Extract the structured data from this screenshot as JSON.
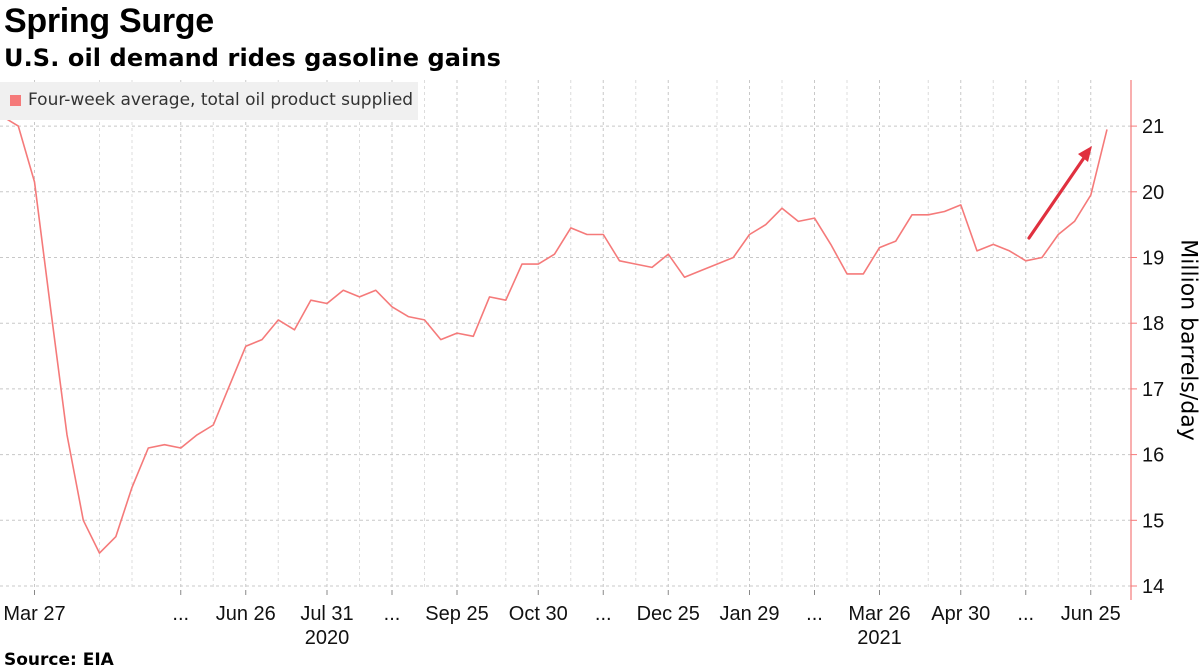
{
  "title": "Spring Surge",
  "subtitle": "U.S. oil demand rides gasoline gains",
  "source": "Source: EIA",
  "colors": {
    "line": "#f57a7a",
    "arrow": "#e0303f",
    "axis": "#f57a7a",
    "grid": "#c8c8c8"
  },
  "chart_data": {
    "type": "line",
    "title": "Spring Surge",
    "subtitle": "U.S. oil demand rides gasoline gains",
    "ylabel": "Million barrels/day",
    "ylim": [
      14,
      21.8
    ],
    "yticks": [
      14,
      15,
      16,
      17,
      18,
      19,
      20,
      21
    ],
    "y_axis_side": "right",
    "grid": true,
    "legend": {
      "placement": "top-left",
      "entries": [
        "Four-week average, total oil product supplied"
      ]
    },
    "x_tick_labels": [
      "Mar 27",
      "...",
      "Jun 26",
      "Jul 31",
      "...",
      "Sep 25",
      "Oct 30",
      "...",
      "Dec 25",
      "Jan 29",
      "...",
      "Mar 26",
      "Apr 30",
      "...",
      "Jun 25"
    ],
    "x_year_labels": [
      "2020",
      "2021"
    ],
    "annotations": [
      "upward arrow near recent data"
    ],
    "series": [
      {
        "name": "Four-week average, total oil product supplied",
        "x": [
          "2020-03-13",
          "2020-03-20",
          "2020-03-27",
          "2020-04-03",
          "2020-04-10",
          "2020-04-17",
          "2020-04-24",
          "2020-05-01",
          "2020-05-08",
          "2020-05-15",
          "2020-05-22",
          "2020-05-29",
          "2020-06-05",
          "2020-06-12",
          "2020-06-19",
          "2020-06-26",
          "2020-07-03",
          "2020-07-10",
          "2020-07-17",
          "2020-07-24",
          "2020-07-31",
          "2020-08-07",
          "2020-08-14",
          "2020-08-21",
          "2020-08-28",
          "2020-09-04",
          "2020-09-11",
          "2020-09-18",
          "2020-09-25",
          "2020-10-02",
          "2020-10-09",
          "2020-10-16",
          "2020-10-23",
          "2020-10-30",
          "2020-11-06",
          "2020-11-13",
          "2020-11-20",
          "2020-11-27",
          "2020-12-04",
          "2020-12-11",
          "2020-12-18",
          "2020-12-25",
          "2021-01-01",
          "2021-01-08",
          "2021-01-15",
          "2021-01-22",
          "2021-01-29",
          "2021-02-05",
          "2021-02-12",
          "2021-02-19",
          "2021-02-26",
          "2021-03-05",
          "2021-03-12",
          "2021-03-19",
          "2021-03-26",
          "2021-04-02",
          "2021-04-09",
          "2021-04-16",
          "2021-04-23",
          "2021-04-30",
          "2021-05-07",
          "2021-05-14",
          "2021-05-21",
          "2021-05-28",
          "2021-06-04",
          "2021-06-11",
          "2021-06-18",
          "2021-06-25",
          "2021-07-02"
        ],
        "values": [
          21.15,
          21.0,
          20.15,
          18.2,
          16.3,
          15.0,
          14.5,
          14.75,
          15.5,
          16.1,
          16.15,
          16.1,
          16.3,
          16.45,
          17.05,
          17.65,
          17.75,
          18.05,
          17.9,
          18.35,
          18.3,
          18.5,
          18.4,
          18.5,
          18.25,
          18.1,
          18.05,
          17.75,
          17.85,
          17.8,
          18.4,
          18.35,
          18.9,
          18.9,
          19.05,
          19.45,
          19.35,
          19.35,
          18.95,
          18.9,
          18.85,
          19.05,
          18.7,
          18.8,
          18.9,
          19.0,
          19.35,
          19.5,
          19.75,
          19.55,
          19.6,
          19.2,
          18.75,
          18.75,
          19.15,
          19.25,
          19.65,
          19.65,
          19.7,
          19.8,
          19.1,
          19.2,
          19.1,
          18.95,
          19.0,
          19.35,
          19.55,
          19.95,
          20.95
        ]
      }
    ]
  }
}
